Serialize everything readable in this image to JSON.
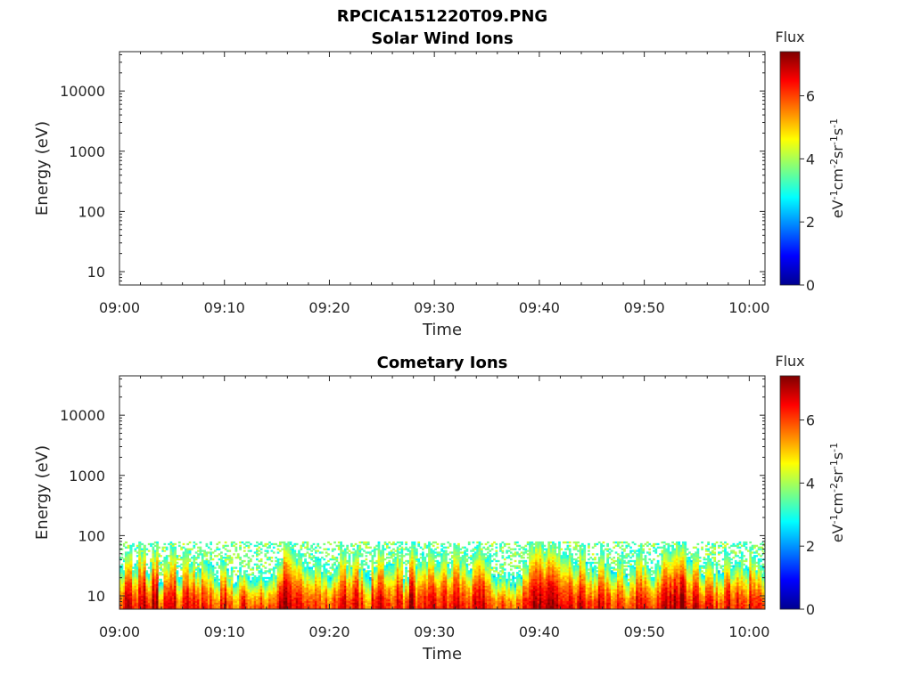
{
  "figure_title": "RPCICA151220T09.PNG",
  "colorbar_stops": [
    "#00008f",
    "#0000ff",
    "#007fff",
    "#00ffff",
    "#7fff7f",
    "#ffff00",
    "#ff7f00",
    "#ff0000",
    "#7f0000"
  ],
  "chart_data": [
    {
      "type": "heatmap",
      "title": "Solar Wind Ions",
      "xlabel": "Time",
      "ylabel": "Energy (eV)",
      "x_ticks": [
        "09:00",
        "09:10",
        "09:20",
        "09:30",
        "09:40",
        "09:50",
        "10:00"
      ],
      "x_range_minutes": [
        0,
        61.5
      ],
      "y_scale": "log",
      "y_ticks": [
        "10",
        "100",
        "1000",
        "10000"
      ],
      "y_range_eV": [
        6,
        45000
      ],
      "colorbar": {
        "title": "Flux",
        "label": "eV-1cm-2sr-1s-1",
        "ticks": [
          "0",
          "2",
          "4",
          "6"
        ],
        "range": [
          0,
          7.4
        ]
      },
      "data_present": false
    },
    {
      "type": "heatmap",
      "title": "Cometary Ions",
      "xlabel": "Time",
      "ylabel": "Energy (eV)",
      "x_ticks": [
        "09:00",
        "09:10",
        "09:20",
        "09:30",
        "09:40",
        "09:50",
        "10:00"
      ],
      "x_range_minutes": [
        0,
        61.5
      ],
      "y_scale": "log",
      "y_ticks": [
        "10",
        "100",
        "1000",
        "10000"
      ],
      "y_range_eV": [
        6,
        45000
      ],
      "colorbar": {
        "title": "Flux",
        "label": "eV-1cm-2sr-1s-1",
        "ticks": [
          "0",
          "2",
          "4",
          "6"
        ],
        "range": [
          0,
          7.4
        ]
      },
      "data_present": true,
      "energy_max_eV": 80,
      "burst_profile": {
        "time_min": [
          0.0,
          0.5,
          1.2,
          1.8,
          2.5,
          3.1,
          3.7,
          4.2,
          4.8,
          5.4,
          6.0,
          6.6,
          7.2,
          7.8,
          8.4,
          9.0,
          9.6,
          10.2,
          10.8,
          11.4,
          12.0,
          12.6,
          13.2,
          13.8,
          14.4,
          15.0,
          15.6,
          16.2,
          16.8,
          17.4,
          18.0,
          18.6,
          19.2,
          19.8,
          20.4,
          21.0,
          21.6,
          22.2,
          22.8,
          23.4,
          24.0,
          24.6,
          25.2,
          25.8,
          26.4,
          27.0,
          27.6,
          28.2,
          28.8,
          29.4,
          30.0,
          30.6,
          31.2,
          31.8,
          32.4,
          33.0,
          33.6,
          34.2,
          34.8,
          35.4,
          36.0,
          36.6,
          37.2,
          37.8,
          38.4,
          39.0,
          39.6,
          40.2,
          40.8,
          41.4,
          42.0,
          42.6,
          43.2,
          43.8,
          44.4,
          45.0,
          45.6,
          46.2,
          46.8,
          47.4,
          48.0,
          48.6,
          49.2,
          49.8,
          50.4,
          51.0,
          51.6,
          52.2,
          52.8,
          53.4,
          54.0,
          54.6,
          55.2,
          55.8,
          56.4,
          57.0,
          57.6,
          58.2,
          58.8,
          59.4,
          60.0,
          60.6,
          61.2
        ],
        "peak_flux": [
          6.2,
          7.0,
          6.5,
          7.2,
          6.4,
          7.3,
          5.8,
          6.6,
          7.1,
          6.0,
          7.2,
          6.8,
          6.2,
          7.0,
          6.3,
          5.9,
          6.8,
          6.1,
          5.7,
          6.5,
          6.0,
          5.8,
          6.2,
          5.9,
          6.1,
          6.9,
          7.2,
          7.0,
          6.6,
          6.2,
          5.9,
          6.5,
          6.0,
          5.8,
          6.3,
          7.1,
          6.5,
          7.0,
          6.4,
          5.8,
          6.6,
          7.0,
          6.1,
          6.4,
          6.8,
          6.0,
          7.2,
          6.3,
          6.7,
          7.1,
          6.5,
          6.9,
          6.4,
          7.1,
          6.6,
          6.2,
          6.8,
          7.0,
          6.5,
          5.9,
          6.1,
          6.0,
          5.8,
          6.0,
          6.4,
          7.1,
          7.3,
          6.9,
          7.1,
          7.0,
          6.6,
          6.8,
          6.5,
          7.0,
          6.3,
          6.2,
          6.9,
          6.4,
          6.0,
          6.7,
          5.9,
          6.2,
          6.8,
          6.5,
          6.0,
          6.3,
          6.9,
          7.0,
          7.2,
          7.3,
          6.5,
          6.8,
          6.1,
          6.6,
          6.2,
          6.0,
          6.9,
          6.4,
          6.6,
          6.2,
          6.8,
          6.4,
          6.0
        ],
        "top_energy_eV": [
          30,
          60,
          35,
          70,
          30,
          75,
          22,
          45,
          65,
          25,
          55,
          40,
          30,
          50,
          28,
          20,
          35,
          25,
          18,
          28,
          22,
          18,
          25,
          20,
          24,
          45,
          75,
          65,
          50,
          35,
          25,
          40,
          28,
          22,
          35,
          70,
          40,
          60,
          35,
          20,
          40,
          65,
          30,
          35,
          55,
          25,
          75,
          35,
          45,
          70,
          40,
          60,
          35,
          70,
          45,
          30,
          55,
          60,
          40,
          22,
          25,
          22,
          18,
          22,
          35,
          75,
          78,
          60,
          70,
          65,
          45,
          50,
          40,
          60,
          30,
          28,
          55,
          35,
          25,
          45,
          20,
          28,
          55,
          40,
          25,
          35,
          60,
          65,
          75,
          78,
          40,
          55,
          28,
          45,
          30,
          25,
          55,
          35,
          45,
          30,
          55,
          35,
          25
        ]
      }
    }
  ]
}
